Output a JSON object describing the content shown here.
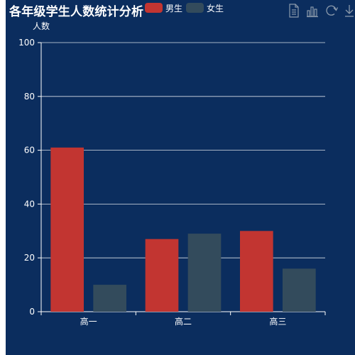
{
  "chart_data": {
    "type": "bar",
    "title": "各年级学生人数统计分析",
    "ylabel": "人数",
    "xlabel": "",
    "categories": [
      "高一",
      "高二",
      "高三"
    ],
    "series": [
      {
        "name": "男生",
        "values": [
          61,
          27,
          30
        ],
        "color": "#c23531"
      },
      {
        "name": "女生",
        "values": [
          10,
          29,
          16
        ],
        "color": "#334b5c"
      }
    ],
    "ylim": [
      0,
      100
    ],
    "yticks": [
      0,
      20,
      40,
      60,
      80,
      100
    ],
    "grid": true,
    "legend_position": "top-center"
  },
  "colors": {
    "background": "#0b2d5e",
    "text": "#ffffff",
    "axis": "#ffffff",
    "toolbox_icon": "#8a99ab"
  },
  "toolbox": {
    "icons": [
      "data-view-icon",
      "bar-chart-icon",
      "restore-icon",
      "download-icon"
    ]
  }
}
